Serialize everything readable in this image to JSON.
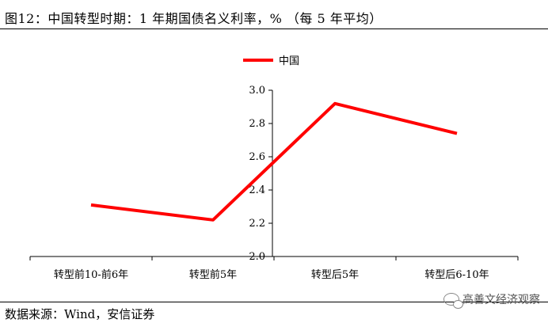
{
  "header": {
    "title": "图12：中国转型时期：1 年期国债名义利率，% （每 5 年平均）"
  },
  "footer": {
    "source": "数据来源：Wind，安信证券",
    "watermark": "高善文经济观察"
  },
  "chart_data": {
    "type": "line",
    "categories": [
      "转型前10-前6年",
      "转型前5年",
      "转型后5年",
      "转型后6-10年"
    ],
    "series": [
      {
        "name": "中国",
        "values": [
          2.31,
          2.22,
          2.92,
          2.74
        ],
        "color": "#ff0000"
      }
    ],
    "ylim": [
      2.0,
      3.0
    ],
    "yticks": [
      "2.0",
      "2.2",
      "2.4",
      "2.6",
      "2.8",
      "3.0"
    ],
    "legend_position": "top-center",
    "grid": false
  }
}
